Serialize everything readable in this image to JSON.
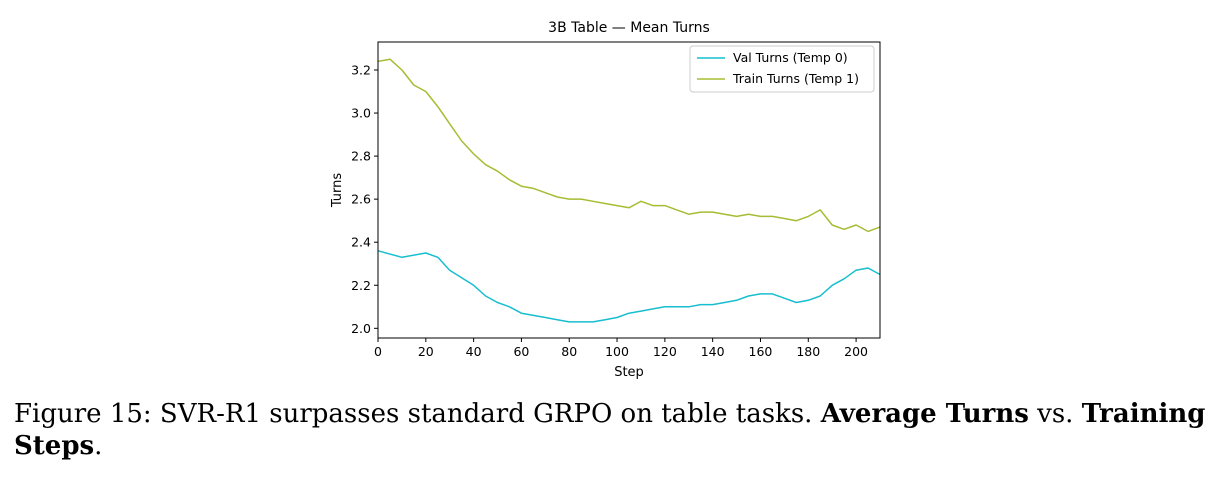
{
  "chart_data": {
    "type": "line",
    "title": "3B Table — Mean Turns",
    "xlabel": "Step",
    "ylabel": "Turns",
    "xlim": [
      0,
      210
    ],
    "ylim": [
      1.955,
      3.33
    ],
    "xticks": [
      0,
      20,
      40,
      60,
      80,
      100,
      120,
      140,
      160,
      180,
      200
    ],
    "yticks": [
      2.0,
      2.2,
      2.4,
      2.6,
      2.8,
      3.0,
      3.2
    ],
    "grid": false,
    "legend_position": "top-right",
    "colors": {
      "val": "#17becf",
      "train": "#a5bd32"
    },
    "series": [
      {
        "name": "Val Turns (Temp 0)",
        "color": "#17becf",
        "x": [
          0,
          10,
          20,
          25,
          30,
          40,
          45,
          50,
          55,
          60,
          65,
          70,
          75,
          80,
          85,
          90,
          95,
          100,
          105,
          110,
          115,
          120,
          125,
          130,
          135,
          140,
          145,
          150,
          155,
          160,
          165,
          170,
          175,
          180,
          185,
          190,
          195,
          200,
          205,
          210
        ],
        "y": [
          2.36,
          2.33,
          2.35,
          2.33,
          2.27,
          2.2,
          2.15,
          2.12,
          2.1,
          2.07,
          2.06,
          2.05,
          2.04,
          2.03,
          2.03,
          2.03,
          2.04,
          2.05,
          2.07,
          2.08,
          2.09,
          2.1,
          2.1,
          2.1,
          2.11,
          2.11,
          2.12,
          2.13,
          2.15,
          2.16,
          2.16,
          2.14,
          2.12,
          2.13,
          2.15,
          2.2,
          2.23,
          2.27,
          2.28,
          2.25
        ]
      },
      {
        "name": "Train Turns (Temp 1)",
        "color": "#a5bd32",
        "x": [
          0,
          5,
          10,
          15,
          20,
          25,
          30,
          35,
          40,
          45,
          50,
          55,
          60,
          65,
          70,
          75,
          80,
          85,
          90,
          95,
          100,
          105,
          110,
          115,
          120,
          125,
          130,
          135,
          140,
          145,
          150,
          155,
          160,
          165,
          170,
          175,
          180,
          185,
          190,
          195,
          200,
          205,
          210
        ],
        "y": [
          3.24,
          3.25,
          3.2,
          3.13,
          3.1,
          3.03,
          2.95,
          2.87,
          2.81,
          2.76,
          2.73,
          2.69,
          2.66,
          2.65,
          2.63,
          2.61,
          2.6,
          2.6,
          2.59,
          2.58,
          2.57,
          2.56,
          2.59,
          2.57,
          2.57,
          2.55,
          2.53,
          2.54,
          2.54,
          2.53,
          2.52,
          2.53,
          2.52,
          2.52,
          2.51,
          2.5,
          2.52,
          2.55,
          2.48,
          2.46,
          2.48,
          2.45,
          2.47
        ]
      }
    ]
  },
  "caption": {
    "prefix": "Figure 15: SVR-R1 surpasses standard GRPO on table tasks. ",
    "bold1": "Average Turns",
    "mid": " vs. ",
    "bold2": "Training Steps",
    "suffix": "."
  }
}
